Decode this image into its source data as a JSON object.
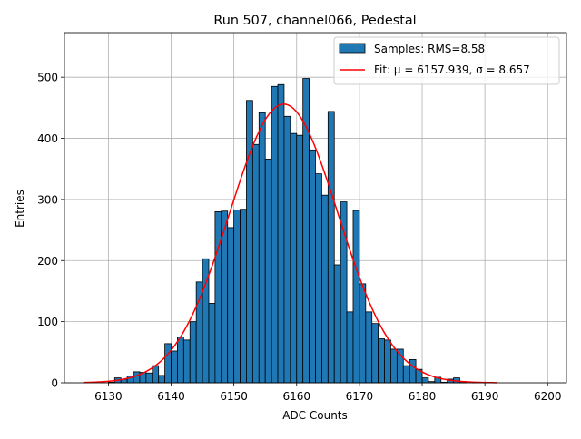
{
  "chart_data": {
    "type": "bar",
    "title": "Run 507, channel066, Pedestal",
    "xlabel": "ADC Counts",
    "ylabel": "Entries",
    "xlim": [
      6123,
      6203
    ],
    "ylim": [
      0,
      573
    ],
    "xticks": [
      6130,
      6140,
      6150,
      6160,
      6170,
      6180,
      6190,
      6200
    ],
    "yticks": [
      0,
      100,
      200,
      300,
      400,
      500
    ],
    "grid": true,
    "legend_position": "top-right",
    "bin_width": 1,
    "histogram": {
      "name": "Samples: RMS=8.58",
      "color": "#1f77b4",
      "edgecolor": "#000000",
      "bin_start": 6130,
      "values": [
        1,
        8,
        6,
        11,
        18,
        17,
        16,
        28,
        12,
        64,
        52,
        75,
        70,
        100,
        165,
        203,
        130,
        280,
        281,
        254,
        283,
        284,
        462,
        390,
        442,
        366,
        485,
        488,
        436,
        408,
        405,
        498,
        381,
        342,
        307,
        444,
        193,
        296,
        116,
        282,
        162,
        116,
        97,
        72,
        70,
        55,
        55,
        28,
        38,
        22,
        8,
        2,
        9,
        1,
        6,
        8,
        2,
        0,
        1
      ]
    },
    "fit": {
      "name": "Fit: μ = 6157.939, σ = 8.657",
      "color": "#ff0000",
      "mu": 6157.939,
      "sigma": 8.657,
      "amplitude": 456,
      "x_range": [
        6126,
        6192
      ]
    }
  }
}
